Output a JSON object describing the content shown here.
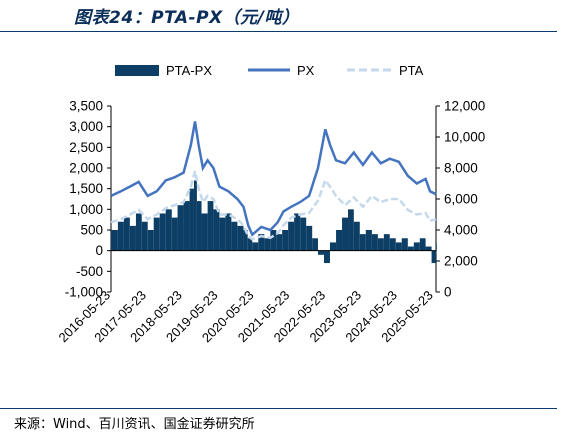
{
  "header": {
    "title": "图表24：PTA-PX（元/吨）"
  },
  "footer": {
    "source": "来源：Wind、百川资讯、国金证券研究所"
  },
  "colors": {
    "spread": "#0d3f66",
    "px": "#4473c0",
    "pta": "#c6d9ec",
    "title": "#0b2e5a"
  },
  "chart_data": {
    "type": "combo",
    "title": "图表24：PTA-PX（元/吨）",
    "x_ticks": [
      "2016-05-23",
      "2017-05-23",
      "2018-05-23",
      "2019-05-23",
      "2020-05-23",
      "2021-05-23",
      "2022-05-23",
      "2023-05-23",
      "2024-05-23",
      "2025-05-23"
    ],
    "x_range": [
      "2016-05-23",
      "2025-06-15"
    ],
    "y_left": {
      "min": -1000,
      "max": 3500,
      "ticks": [
        "-1,000",
        "-500",
        "0",
        "500",
        "1,000",
        "1,500",
        "2,000",
        "2,500",
        "3,000",
        "3,500"
      ]
    },
    "y_right": {
      "min": 0,
      "max": 12000,
      "ticks": [
        "0",
        "2,000",
        "4,000",
        "6,000",
        "8,000",
        "10,000",
        "12,000"
      ]
    },
    "legend": {
      "position": "top",
      "labels": [
        "PTA-PX",
        "PX",
        "PTA"
      ]
    },
    "series": [
      {
        "name": "PTA-PX",
        "type": "bar",
        "axis": "left",
        "points": [
          [
            "2016-05-23",
            500
          ],
          [
            "2016-08-01",
            700
          ],
          [
            "2016-10-01",
            800
          ],
          [
            "2016-12-01",
            600
          ],
          [
            "2017-02-01",
            900
          ],
          [
            "2017-04-01",
            700
          ],
          [
            "2017-06-01",
            500
          ],
          [
            "2017-08-01",
            800
          ],
          [
            "2017-10-01",
            900
          ],
          [
            "2017-12-01",
            1000
          ],
          [
            "2018-02-01",
            800
          ],
          [
            "2018-04-01",
            1100
          ],
          [
            "2018-06-01",
            1200
          ],
          [
            "2018-08-01",
            1500
          ],
          [
            "2018-09-15",
            1700
          ],
          [
            "2018-10-15",
            1200
          ],
          [
            "2018-12-01",
            900
          ],
          [
            "2019-02-01",
            1200
          ],
          [
            "2019-04-01",
            1000
          ],
          [
            "2019-06-01",
            800
          ],
          [
            "2019-08-01",
            900
          ],
          [
            "2019-10-01",
            700
          ],
          [
            "2019-12-01",
            600
          ],
          [
            "2020-02-01",
            500
          ],
          [
            "2020-03-15",
            300
          ],
          [
            "2020-05-01",
            200
          ],
          [
            "2020-07-01",
            400
          ],
          [
            "2020-09-01",
            300
          ],
          [
            "2020-11-01",
            500
          ],
          [
            "2021-01-01",
            400
          ],
          [
            "2021-03-01",
            500
          ],
          [
            "2021-05-01",
            700
          ],
          [
            "2021-07-01",
            900
          ],
          [
            "2021-09-01",
            800
          ],
          [
            "2021-11-01",
            600
          ],
          [
            "2022-01-01",
            300
          ],
          [
            "2022-03-01",
            -100
          ],
          [
            "2022-05-01",
            -300
          ],
          [
            "2022-07-01",
            200
          ],
          [
            "2022-09-01",
            500
          ],
          [
            "2022-11-01",
            800
          ],
          [
            "2023-01-01",
            1000
          ],
          [
            "2023-03-01",
            700
          ],
          [
            "2023-05-01",
            400
          ],
          [
            "2023-07-01",
            500
          ],
          [
            "2023-09-01",
            400
          ],
          [
            "2023-11-01",
            300
          ],
          [
            "2024-01-01",
            400
          ],
          [
            "2024-03-01",
            300
          ],
          [
            "2024-05-01",
            200
          ],
          [
            "2024-07-01",
            300
          ],
          [
            "2024-09-01",
            100
          ],
          [
            "2024-11-01",
            200
          ],
          [
            "2025-01-01",
            300
          ],
          [
            "2025-03-01",
            100
          ],
          [
            "2025-05-01",
            -300
          ],
          [
            "2025-06-15",
            200
          ]
        ]
      },
      {
        "name": "PX",
        "type": "line",
        "axis": "right",
        "points": [
          [
            "2016-05-23",
            6200
          ],
          [
            "2016-09-01",
            6500
          ],
          [
            "2016-12-01",
            6800
          ],
          [
            "2017-03-01",
            7100
          ],
          [
            "2017-06-01",
            6200
          ],
          [
            "2017-09-01",
            6500
          ],
          [
            "2017-12-01",
            7200
          ],
          [
            "2018-03-01",
            7400
          ],
          [
            "2018-06-01",
            7700
          ],
          [
            "2018-08-15",
            9500
          ],
          [
            "2018-09-25",
            11000
          ],
          [
            "2018-11-01",
            9500
          ],
          [
            "2018-12-15",
            8000
          ],
          [
            "2019-02-01",
            8500
          ],
          [
            "2019-04-01",
            8000
          ],
          [
            "2019-06-01",
            6800
          ],
          [
            "2019-09-01",
            6500
          ],
          [
            "2019-12-01",
            6000
          ],
          [
            "2020-02-01",
            5500
          ],
          [
            "2020-03-20",
            4300
          ],
          [
            "2020-05-01",
            3700
          ],
          [
            "2020-08-01",
            4200
          ],
          [
            "2020-11-01",
            4000
          ],
          [
            "2021-01-15",
            4500
          ],
          [
            "2021-03-15",
            5200
          ],
          [
            "2021-06-01",
            5500
          ],
          [
            "2021-09-01",
            5800
          ],
          [
            "2021-12-01",
            6200
          ],
          [
            "2022-03-01",
            8000
          ],
          [
            "2022-05-15",
            10500
          ],
          [
            "2022-07-01",
            9500
          ],
          [
            "2022-09-01",
            8500
          ],
          [
            "2022-12-01",
            8300
          ],
          [
            "2023-03-01",
            9000
          ],
          [
            "2023-06-01",
            8200
          ],
          [
            "2023-09-01",
            9000
          ],
          [
            "2023-12-01",
            8300
          ],
          [
            "2024-03-01",
            8600
          ],
          [
            "2024-06-01",
            8400
          ],
          [
            "2024-09-01",
            7500
          ],
          [
            "2024-12-01",
            7000
          ],
          [
            "2025-03-01",
            7300
          ],
          [
            "2025-04-15",
            6500
          ],
          [
            "2025-06-15",
            6300
          ]
        ]
      },
      {
        "name": "PTA",
        "type": "line",
        "axis": "right",
        "points": [
          [
            "2016-05-23",
            4500
          ],
          [
            "2016-09-01",
            4700
          ],
          [
            "2016-12-01",
            5000
          ],
          [
            "2017-03-01",
            5300
          ],
          [
            "2017-06-01",
            4700
          ],
          [
            "2017-09-01",
            5000
          ],
          [
            "2017-12-01",
            5400
          ],
          [
            "2018-03-01",
            5600
          ],
          [
            "2018-06-01",
            5800
          ],
          [
            "2018-08-15",
            6800
          ],
          [
            "2018-09-25",
            7800
          ],
          [
            "2018-11-01",
            6700
          ],
          [
            "2018-12-15",
            5800
          ],
          [
            "2019-02-01",
            6200
          ],
          [
            "2019-04-01",
            6000
          ],
          [
            "2019-06-01",
            5000
          ],
          [
            "2019-09-01",
            5000
          ],
          [
            "2019-12-01",
            4700
          ],
          [
            "2020-02-01",
            4300
          ],
          [
            "2020-03-20",
            3600
          ],
          [
            "2020-05-01",
            3400
          ],
          [
            "2020-08-01",
            3600
          ],
          [
            "2020-11-01",
            3500
          ],
          [
            "2021-01-15",
            3800
          ],
          [
            "2021-03-15",
            4300
          ],
          [
            "2021-06-01",
            4800
          ],
          [
            "2021-09-01",
            5000
          ],
          [
            "2021-12-01",
            5100
          ],
          [
            "2022-03-01",
            5900
          ],
          [
            "2022-05-15",
            7200
          ],
          [
            "2022-07-01",
            6800
          ],
          [
            "2022-09-01",
            6200
          ],
          [
            "2022-12-01",
            5600
          ],
          [
            "2023-03-01",
            6100
          ],
          [
            "2023-06-01",
            5500
          ],
          [
            "2023-09-01",
            6200
          ],
          [
            "2023-12-01",
            5800
          ],
          [
            "2024-03-01",
            6000
          ],
          [
            "2024-06-01",
            6000
          ],
          [
            "2024-09-01",
            5300
          ],
          [
            "2024-12-01",
            5000
          ],
          [
            "2025-03-01",
            5100
          ],
          [
            "2025-04-15",
            4600
          ],
          [
            "2025-06-15",
            4700
          ]
        ]
      }
    ]
  }
}
